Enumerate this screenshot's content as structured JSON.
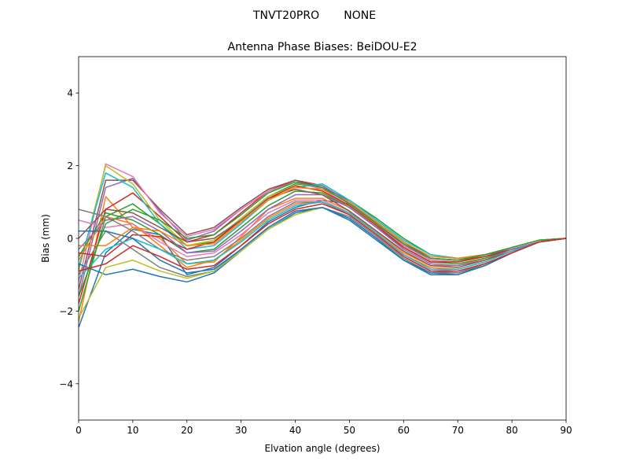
{
  "chart_data": {
    "type": "line",
    "suptitle": "TNVT20PRO       NONE",
    "title": "Antenna Phase Biases: BeiDOU-E2",
    "xlabel": "Elvation angle (degrees)",
    "ylabel": "Bias (mm)",
    "xlim": [
      0,
      90
    ],
    "ylim": [
      -5,
      5
    ],
    "xticks": [
      0,
      10,
      20,
      30,
      40,
      50,
      60,
      70,
      80,
      90
    ],
    "yticks": [
      -4,
      -2,
      0,
      2,
      4
    ],
    "grid": false,
    "legend": "none",
    "x": [
      0,
      5,
      10,
      15,
      20,
      25,
      30,
      35,
      40,
      45,
      50,
      55,
      60,
      65,
      70,
      75,
      80,
      85,
      90
    ],
    "colors": [
      "#1f77b4",
      "#ff7f0e",
      "#2ca02c",
      "#d62728",
      "#9467bd",
      "#8c564b",
      "#e377c2",
      "#7f7f7f",
      "#bcbd22",
      "#17becf"
    ],
    "series": [
      {
        "values": [
          -2.45,
          -0.4,
          0.25,
          0.1,
          -1.0,
          -0.8,
          -0.2,
          0.45,
          0.85,
          1.05,
          0.95,
          0.4,
          -0.2,
          -0.55,
          -0.6,
          -0.45,
          -0.3,
          -0.1,
          0.0
        ]
      },
      {
        "values": [
          -2.3,
          1.15,
          0.3,
          0.0,
          -0.7,
          -0.65,
          0.05,
          0.8,
          1.1,
          1.1,
          0.75,
          0.2,
          -0.4,
          -0.75,
          -0.75,
          -0.55,
          -0.3,
          -0.1,
          0.0
        ]
      },
      {
        "values": [
          -2.0,
          0.6,
          0.95,
          0.4,
          -0.2,
          -0.1,
          0.55,
          1.15,
          1.5,
          1.4,
          1.05,
          0.55,
          0.0,
          -0.45,
          -0.55,
          -0.45,
          -0.25,
          -0.05,
          0.0
        ]
      },
      {
        "values": [
          -1.8,
          0.8,
          1.25,
          0.6,
          -0.1,
          0.1,
          0.7,
          1.3,
          1.6,
          1.45,
          1.0,
          0.45,
          -0.1,
          -0.55,
          -0.6,
          -0.5,
          -0.3,
          -0.1,
          0.0
        ]
      },
      {
        "values": [
          -1.6,
          1.4,
          1.65,
          0.75,
          -0.05,
          0.2,
          0.8,
          1.3,
          1.55,
          1.45,
          1.0,
          0.4,
          -0.15,
          -0.55,
          -0.6,
          -0.45,
          -0.25,
          -0.05,
          0.0
        ]
      },
      {
        "values": [
          -1.4,
          1.6,
          1.6,
          0.8,
          0.1,
          0.3,
          0.85,
          1.35,
          1.6,
          1.4,
          0.95,
          0.4,
          -0.2,
          -0.6,
          -0.65,
          -0.5,
          -0.3,
          -0.1,
          0.0
        ]
      },
      {
        "values": [
          -1.2,
          2.05,
          1.7,
          0.7,
          0.05,
          0.25,
          0.8,
          1.3,
          1.55,
          1.35,
          0.9,
          0.35,
          -0.2,
          -0.6,
          -0.65,
          -0.5,
          -0.3,
          -0.1,
          0.0
        ]
      },
      {
        "values": [
          -1.0,
          0.2,
          -0.3,
          -0.8,
          -1.05,
          -0.9,
          -0.3,
          0.3,
          0.75,
          0.85,
          0.6,
          0.05,
          -0.55,
          -0.95,
          -1.0,
          -0.75,
          -0.4,
          -0.1,
          0.0
        ]
      },
      {
        "values": [
          -0.9,
          2.0,
          1.5,
          0.5,
          -0.2,
          -0.05,
          0.55,
          1.15,
          1.45,
          1.3,
          0.85,
          0.3,
          -0.25,
          -0.65,
          -0.65,
          -0.5,
          -0.3,
          -0.1,
          0.0
        ]
      },
      {
        "values": [
          -0.8,
          1.8,
          1.4,
          0.4,
          -0.3,
          -0.2,
          0.4,
          1.05,
          1.4,
          1.5,
          1.05,
          0.5,
          -0.05,
          -0.45,
          -0.55,
          -0.45,
          -0.25,
          -0.05,
          0.0
        ]
      },
      {
        "values": [
          -0.7,
          -1.0,
          -0.85,
          -1.05,
          -1.2,
          -0.95,
          -0.35,
          0.25,
          0.7,
          0.85,
          0.5,
          -0.05,
          -0.6,
          -0.95,
          -0.95,
          -0.75,
          -0.4,
          -0.1,
          0.0
        ]
      },
      {
        "values": [
          -0.6,
          0.6,
          0.4,
          -0.2,
          -0.8,
          -0.6,
          -0.05,
          0.55,
          0.95,
          1.0,
          0.7,
          0.15,
          -0.45,
          -0.8,
          -0.85,
          -0.65,
          -0.35,
          -0.1,
          0.0
        ]
      },
      {
        "values": [
          -0.5,
          0.7,
          0.5,
          0.1,
          -0.4,
          -0.3,
          0.3,
          0.9,
          1.3,
          1.25,
          0.85,
          0.3,
          -0.25,
          -0.65,
          -0.7,
          -0.55,
          -0.3,
          -0.1,
          0.0
        ]
      },
      {
        "values": [
          -0.4,
          -0.5,
          0.1,
          0.05,
          -0.3,
          -0.1,
          0.5,
          1.1,
          1.45,
          1.3,
          0.9,
          0.35,
          -0.25,
          -0.65,
          -0.65,
          -0.5,
          -0.3,
          -0.1,
          0.0
        ]
      },
      {
        "values": [
          -0.3,
          0.5,
          0.6,
          0.2,
          -0.4,
          -0.35,
          0.2,
          0.8,
          1.2,
          1.2,
          0.85,
          0.3,
          -0.3,
          -0.7,
          -0.75,
          -0.6,
          -0.3,
          -0.1,
          0.0
        ]
      },
      {
        "values": [
          0.0,
          0.8,
          0.7,
          0.3,
          -0.1,
          0.0,
          0.5,
          1.1,
          1.35,
          1.2,
          0.75,
          0.2,
          -0.35,
          -0.75,
          -0.8,
          -0.6,
          -0.35,
          -0.1,
          0.0
        ]
      },
      {
        "values": [
          0.5,
          0.3,
          0.4,
          -0.1,
          -0.5,
          -0.4,
          0.1,
          0.7,
          1.05,
          1.05,
          0.7,
          0.15,
          -0.45,
          -0.85,
          -0.9,
          -0.7,
          -0.4,
          -0.1,
          0.0
        ]
      },
      {
        "values": [
          0.8,
          0.6,
          0.2,
          -0.3,
          -0.6,
          -0.5,
          0.0,
          0.6,
          1.0,
          1.0,
          0.65,
          0.1,
          -0.5,
          -0.9,
          -0.95,
          -0.7,
          -0.4,
          -0.1,
          0.0
        ]
      },
      {
        "values": [
          -2.2,
          -0.8,
          -0.6,
          -0.9,
          -1.1,
          -0.9,
          -0.35,
          0.25,
          0.65,
          0.85,
          0.55,
          0.0,
          -0.6,
          -1.0,
          -1.0,
          -0.75,
          -0.4,
          -0.1,
          0.0
        ]
      },
      {
        "values": [
          -1.1,
          -0.3,
          0.0,
          -0.3,
          -0.7,
          -0.6,
          -0.1,
          0.5,
          0.9,
          1.0,
          0.7,
          0.15,
          -0.45,
          -0.85,
          -0.85,
          -0.65,
          -0.35,
          -0.1,
          0.0
        ]
      },
      {
        "values": [
          0.2,
          0.2,
          0.0,
          -0.6,
          -0.95,
          -0.85,
          -0.3,
          0.3,
          0.75,
          0.85,
          0.55,
          0.0,
          -0.6,
          -1.0,
          -1.0,
          -0.75,
          -0.4,
          -0.1,
          0.0
        ]
      },
      {
        "values": [
          -0.2,
          -0.2,
          0.3,
          0.2,
          -0.2,
          -0.15,
          0.45,
          1.05,
          1.4,
          1.35,
          1.0,
          0.45,
          -0.1,
          -0.5,
          -0.55,
          -0.45,
          -0.25,
          -0.05,
          0.0
        ]
      },
      {
        "values": [
          -1.6,
          0.4,
          0.8,
          0.5,
          0.0,
          0.1,
          0.65,
          1.25,
          1.55,
          1.4,
          0.95,
          0.4,
          -0.15,
          -0.55,
          -0.6,
          -0.45,
          -0.25,
          -0.05,
          0.0
        ]
      },
      {
        "values": [
          -0.9,
          -0.7,
          -0.2,
          -0.5,
          -0.85,
          -0.75,
          -0.2,
          0.4,
          0.8,
          0.95,
          0.65,
          0.1,
          -0.5,
          -0.9,
          -0.9,
          -0.7,
          -0.4,
          -0.1,
          0.0
        ]
      }
    ]
  }
}
